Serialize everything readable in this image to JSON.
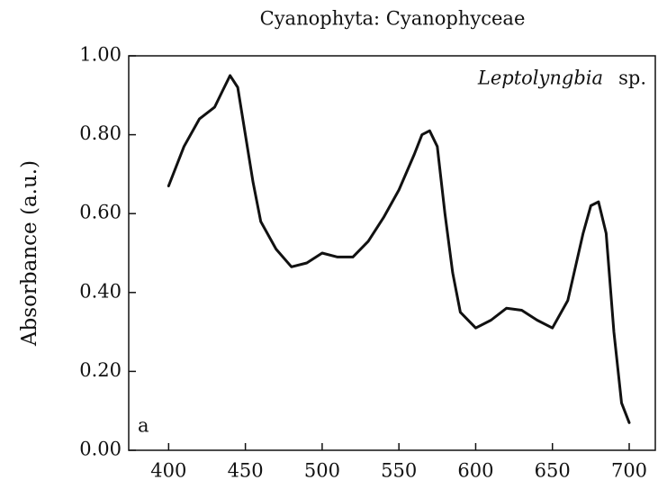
{
  "chart_data": {
    "type": "line",
    "title": "Cyanophyta: Cyanophyceae",
    "ylabel": "Absorbance (a.u.)",
    "annotation": {
      "genus": "Leptolyngbia",
      "suffix": "sp."
    },
    "panel_label": "a",
    "color": "#111111",
    "x": [
      400,
      410,
      420,
      430,
      435,
      440,
      445,
      450,
      455,
      460,
      470,
      480,
      490,
      500,
      510,
      520,
      530,
      540,
      550,
      560,
      565,
      570,
      575,
      580,
      585,
      590,
      600,
      610,
      620,
      630,
      640,
      650,
      660,
      670,
      675,
      680,
      685,
      690,
      695,
      700
    ],
    "y": [
      0.67,
      0.77,
      0.84,
      0.87,
      0.91,
      0.95,
      0.92,
      0.8,
      0.68,
      0.58,
      0.51,
      0.465,
      0.475,
      0.5,
      0.49,
      0.49,
      0.53,
      0.59,
      0.66,
      0.75,
      0.8,
      0.81,
      0.77,
      0.6,
      0.45,
      0.35,
      0.31,
      0.33,
      0.36,
      0.355,
      0.33,
      0.31,
      0.38,
      0.55,
      0.62,
      0.63,
      0.55,
      0.3,
      0.12,
      0.07
    ],
    "xlim": [
      374,
      717
    ],
    "ylim": [
      0,
      1
    ],
    "xticks": [
      400,
      450,
      500,
      550,
      600,
      650,
      700
    ],
    "yticks": [
      {
        "value": 0,
        "label": "0.00"
      },
      {
        "value": 0.2,
        "label": "0.20"
      },
      {
        "value": 0.4,
        "label": "0.40"
      },
      {
        "value": 0.6,
        "label": "0.60"
      },
      {
        "value": 0.8,
        "label": "0.80"
      },
      {
        "value": 1,
        "label": "1.00"
      }
    ]
  }
}
